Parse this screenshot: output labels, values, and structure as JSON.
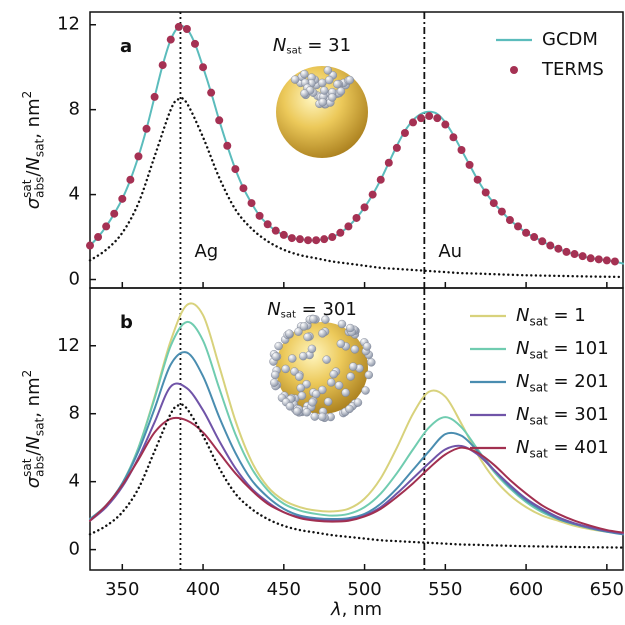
{
  "chart_data": [
    {
      "type": "line",
      "panel_label": "a",
      "xlim": [
        330,
        660
      ],
      "ylim": [
        -0.4,
        12.6
      ],
      "yticks": [
        0,
        4,
        8,
        12
      ],
      "legend": "upper right",
      "y_label": [
        {
          "text": "σ",
          "style": "italic"
        },
        {
          "text": "sat",
          "style": "sup"
        },
        {
          "text": "abs",
          "style": "sub"
        },
        {
          "text": "/"
        },
        {
          "text": "N",
          "style": "italic"
        },
        {
          "text": "sat",
          "style": "sub"
        },
        {
          "text": ", nm"
        },
        {
          "text": "2",
          "style": "sup"
        }
      ],
      "inset_label": [
        {
          "text": "N",
          "style": "italic"
        },
        {
          "text": "sat",
          "style": "sub"
        },
        {
          "text": " = 31"
        }
      ],
      "vlines": [
        {
          "x": 386,
          "label": "Ag",
          "style": "dotted"
        },
        {
          "x": 537,
          "label": "Au",
          "style": "dashdot"
        }
      ],
      "x": [
        330,
        335,
        340,
        345,
        350,
        355,
        360,
        365,
        370,
        375,
        380,
        385,
        390,
        395,
        400,
        405,
        410,
        415,
        420,
        425,
        430,
        435,
        440,
        445,
        450,
        455,
        460,
        465,
        470,
        475,
        480,
        485,
        490,
        495,
        500,
        505,
        510,
        515,
        520,
        525,
        530,
        535,
        540,
        545,
        550,
        555,
        560,
        565,
        570,
        575,
        580,
        585,
        590,
        595,
        600,
        605,
        610,
        615,
        620,
        625,
        630,
        635,
        640,
        645,
        650,
        655,
        660
      ],
      "series": [
        {
          "name": [
            {
              "text": "GCDM"
            }
          ],
          "color": "#5bbcbc",
          "marker": "line",
          "values": [
            1.6,
            2.0,
            2.5,
            3.1,
            3.8,
            4.7,
            5.8,
            7.1,
            8.6,
            10.1,
            11.3,
            11.9,
            11.8,
            11.1,
            10.0,
            8.8,
            7.5,
            6.3,
            5.2,
            4.3,
            3.6,
            3.0,
            2.6,
            2.3,
            2.1,
            1.95,
            1.9,
            1.85,
            1.85,
            1.9,
            2.0,
            2.2,
            2.5,
            2.9,
            3.4,
            4.0,
            4.7,
            5.5,
            6.3,
            7.0,
            7.5,
            7.8,
            7.9,
            7.8,
            7.4,
            6.8,
            6.1,
            5.4,
            4.7,
            4.1,
            3.6,
            3.2,
            2.8,
            2.5,
            2.2,
            2.0,
            1.8,
            1.6,
            1.45,
            1.3,
            1.2,
            1.1,
            1.0,
            0.95,
            0.9,
            0.85,
            0.75
          ]
        },
        {
          "name": [
            {
              "text": "TERMS"
            }
          ],
          "color": "#a53153",
          "marker": "dot",
          "values": [
            1.6,
            2.0,
            2.5,
            3.1,
            3.8,
            4.7,
            5.8,
            7.1,
            8.6,
            10.1,
            11.3,
            11.9,
            11.8,
            11.1,
            10.0,
            8.8,
            7.5,
            6.3,
            5.2,
            4.3,
            3.6,
            3.0,
            2.6,
            2.3,
            2.1,
            1.95,
            1.9,
            1.85,
            1.85,
            1.9,
            2.0,
            2.2,
            2.5,
            2.9,
            3.4,
            4.0,
            4.7,
            5.5,
            6.2,
            6.9,
            7.4,
            7.6,
            7.7,
            7.6,
            7.3,
            6.7,
            6.1,
            5.4,
            4.7,
            4.1,
            3.6,
            3.2,
            2.8,
            2.5,
            2.2,
            2.0,
            1.8,
            1.6,
            1.45,
            1.3,
            1.2,
            1.1,
            1.0,
            0.95,
            0.9,
            0.85,
            null
          ]
        },
        {
          "color": "#111111",
          "marker": "dotted",
          "x": [
            330,
            340,
            350,
            360,
            370,
            380,
            385,
            390,
            400,
            410,
            420,
            430,
            440,
            450,
            460,
            470,
            480,
            490,
            500,
            510,
            520,
            530,
            540,
            550,
            560,
            570,
            580,
            600,
            620,
            640,
            660
          ],
          "values": [
            0.9,
            1.4,
            2.2,
            3.6,
            5.8,
            8.0,
            8.5,
            8.3,
            6.7,
            4.8,
            3.3,
            2.4,
            1.8,
            1.4,
            1.15,
            1.0,
            0.85,
            0.75,
            0.65,
            0.55,
            0.5,
            0.45,
            0.4,
            0.35,
            0.3,
            0.28,
            0.25,
            0.2,
            0.17,
            0.14,
            0.12
          ]
        }
      ]
    },
    {
      "type": "line",
      "panel_label": "b",
      "xlim": [
        330,
        660
      ],
      "ylim": [
        -1.2,
        15.4
      ],
      "yticks": [
        0,
        4,
        8,
        12
      ],
      "legend": "upper right",
      "xticks": [
        350,
        400,
        450,
        500,
        550,
        600,
        650
      ],
      "x_label": [
        {
          "text": "λ",
          "style": "italic"
        },
        {
          "text": ", nm"
        }
      ],
      "y_label": [
        {
          "text": "σ",
          "style": "italic"
        },
        {
          "text": "sat",
          "style": "sup"
        },
        {
          "text": "abs",
          "style": "sub"
        },
        {
          "text": "/"
        },
        {
          "text": "N",
          "style": "italic"
        },
        {
          "text": "sat",
          "style": "sub"
        },
        {
          "text": ", nm"
        },
        {
          "text": "2",
          "style": "sup"
        }
      ],
      "inset_label": [
        {
          "text": "N",
          "style": "italic"
        },
        {
          "text": "sat",
          "style": "sub"
        },
        {
          "text": " = 301"
        }
      ],
      "vlines": [
        {
          "x": 386,
          "style": "dotted"
        },
        {
          "x": 537,
          "style": "dashdot"
        }
      ],
      "x": [
        330,
        340,
        350,
        360,
        370,
        380,
        390,
        400,
        410,
        420,
        430,
        440,
        450,
        460,
        470,
        480,
        490,
        500,
        510,
        520,
        530,
        540,
        550,
        560,
        570,
        580,
        590,
        600,
        610,
        620,
        630,
        640,
        650,
        660
      ],
      "series": [
        {
          "name": [
            {
              "text": "N",
              "style": "italic"
            },
            {
              "text": "sat",
              "style": "sub"
            },
            {
              "text": " = 1"
            }
          ],
          "color": "#d8d27c",
          "marker": "line",
          "values": [
            1.8,
            2.6,
            3.9,
            6.0,
            9.0,
            12.3,
            14.4,
            13.8,
            10.8,
            7.6,
            5.2,
            3.7,
            2.9,
            2.5,
            2.3,
            2.25,
            2.4,
            3.0,
            4.2,
            6.0,
            8.0,
            9.3,
            9.0,
            7.4,
            5.6,
            4.2,
            3.2,
            2.5,
            2.0,
            1.7,
            1.4,
            1.2,
            1.05,
            0.95
          ]
        },
        {
          "name": [
            {
              "text": "N",
              "style": "italic"
            },
            {
              "text": "sat",
              "style": "sub"
            },
            {
              "text": " = 101"
            }
          ],
          "color": "#70ccb0",
          "marker": "line",
          "values": [
            1.8,
            2.6,
            3.9,
            6.0,
            8.9,
            12.0,
            13.4,
            12.3,
            9.5,
            6.8,
            4.8,
            3.5,
            2.7,
            2.3,
            2.1,
            2.0,
            2.1,
            2.5,
            3.3,
            4.5,
            5.9,
            7.2,
            7.8,
            7.2,
            5.9,
            4.6,
            3.6,
            2.8,
            2.2,
            1.8,
            1.5,
            1.3,
            1.1,
            1.0
          ]
        },
        {
          "name": [
            {
              "text": "N",
              "style": "italic"
            },
            {
              "text": "sat",
              "style": "sub"
            },
            {
              "text": " = 201"
            }
          ],
          "color": "#4a8db0",
          "marker": "line",
          "values": [
            1.8,
            2.6,
            3.9,
            5.8,
            8.3,
            10.9,
            11.6,
            10.2,
            7.8,
            5.7,
            4.1,
            3.1,
            2.4,
            2.0,
            1.85,
            1.8,
            1.85,
            2.1,
            2.7,
            3.6,
            4.7,
            5.8,
            6.8,
            6.7,
            5.8,
            4.7,
            3.7,
            2.9,
            2.3,
            1.8,
            1.5,
            1.25,
            1.05,
            0.9
          ]
        },
        {
          "name": [
            {
              "text": "N",
              "style": "italic"
            },
            {
              "text": "sat",
              "style": "sub"
            },
            {
              "text": " = 301"
            }
          ],
          "color": "#7054a8",
          "marker": "line",
          "values": [
            1.7,
            2.5,
            3.7,
            5.4,
            7.5,
            9.6,
            9.5,
            8.2,
            6.4,
            4.8,
            3.6,
            2.8,
            2.2,
            1.9,
            1.75,
            1.7,
            1.75,
            2.0,
            2.5,
            3.3,
            4.2,
            5.1,
            5.9,
            6.1,
            5.6,
            4.7,
            3.8,
            3.0,
            2.4,
            1.9,
            1.55,
            1.3,
            1.1,
            0.95
          ]
        },
        {
          "name": [
            {
              "text": "N",
              "style": "italic"
            },
            {
              "text": "sat",
              "style": "sub"
            },
            {
              "text": " = 401"
            }
          ],
          "color": "#a23050",
          "marker": "line",
          "values": [
            1.7,
            2.6,
            3.8,
            5.3,
            6.9,
            7.7,
            7.6,
            6.9,
            5.7,
            4.5,
            3.5,
            2.7,
            2.2,
            1.85,
            1.7,
            1.65,
            1.7,
            1.95,
            2.4,
            3.1,
            3.9,
            4.8,
            5.6,
            6.0,
            5.7,
            5.0,
            4.1,
            3.3,
            2.6,
            2.1,
            1.7,
            1.4,
            1.15,
            1.0
          ]
        },
        {
          "color": "#111111",
          "marker": "dotted",
          "x": [
            330,
            340,
            350,
            360,
            370,
            380,
            385,
            390,
            400,
            410,
            420,
            430,
            440,
            450,
            460,
            470,
            480,
            490,
            500,
            510,
            520,
            530,
            540,
            550,
            560,
            570,
            580,
            600,
            620,
            640,
            660
          ],
          "values": [
            0.9,
            1.4,
            2.2,
            3.6,
            5.8,
            8.0,
            8.5,
            8.3,
            6.7,
            4.8,
            3.3,
            2.4,
            1.8,
            1.4,
            1.15,
            1.0,
            0.85,
            0.75,
            0.65,
            0.55,
            0.5,
            0.45,
            0.4,
            0.35,
            0.3,
            0.28,
            0.25,
            0.2,
            0.17,
            0.14,
            0.12
          ]
        }
      ]
    }
  ]
}
